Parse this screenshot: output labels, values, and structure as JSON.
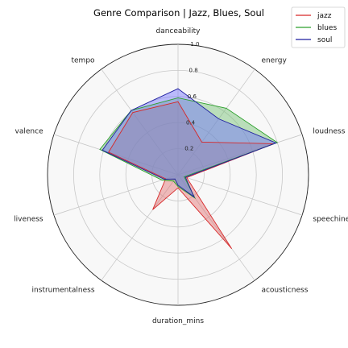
{
  "chart_data": {
    "type": "radar",
    "title": "Genre Comparison | Jazz, Blues, Soul",
    "axes": [
      "danceability",
      "energy",
      "loudness",
      "speechiness",
      "acousticness",
      "duration_mins",
      "instrumentalness",
      "liveness",
      "valence",
      "tempo"
    ],
    "rlim": [
      0,
      1.0
    ],
    "rticks": [
      0.2,
      0.4,
      0.6,
      0.8,
      1.0
    ],
    "rtick_labels": [
      "0.2",
      "0.4",
      "0.6",
      "0.8",
      "1.0"
    ],
    "series": [
      {
        "name": "jazz",
        "color": "#d62728",
        "fill": "#e36c6c",
        "values": [
          0.56,
          0.31,
          0.77,
          0.07,
          0.7,
          0.1,
          0.33,
          0.1,
          0.56,
          0.59
        ]
      },
      {
        "name": "blues",
        "color": "#2ca02c",
        "fill": "#6fbf6f",
        "values": [
          0.59,
          0.63,
          0.8,
          0.05,
          0.22,
          0.09,
          0.06,
          0.13,
          0.63,
          0.61
        ]
      },
      {
        "name": "soul",
        "color": "#1f1f9f",
        "fill": "#6f6fff",
        "values": [
          0.66,
          0.53,
          0.79,
          0.06,
          0.21,
          0.08,
          0.04,
          0.11,
          0.61,
          0.61
        ]
      }
    ],
    "legend_position": "top-right",
    "grid": true
  }
}
